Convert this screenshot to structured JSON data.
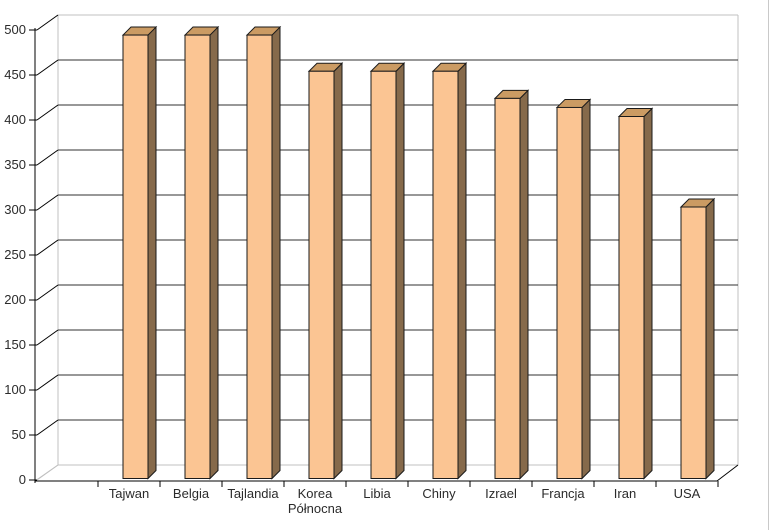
{
  "window": {
    "background_color": "#FFFFFF",
    "right_edge_border_color": "#C9C9C9"
  },
  "chart_data": {
    "type": "bar",
    "style": "3d-column",
    "title": "",
    "xlabel": "",
    "ylabel": "",
    "categories": [
      "Tajwan",
      "Belgia",
      "Tajlandia",
      "Korea Północna",
      "Libia",
      "Chiny",
      "Izrael",
      "Francja",
      "Iran",
      "USA"
    ],
    "values": [
      490,
      490,
      490,
      450,
      450,
      450,
      420,
      410,
      400,
      300
    ],
    "category_wrap": {
      "Korea Północna": [
        "Korea",
        "Północna"
      ]
    },
    "ylim": [
      0,
      500
    ],
    "ytick_step": 50,
    "ytick_labels": [
      "0",
      "50",
      "100",
      "150",
      "200",
      "250",
      "300",
      "350",
      "400",
      "450",
      "500"
    ],
    "grid": true,
    "legend": false,
    "layout_hints": {
      "projection": "oblique-3d",
      "gridlines": "horizontal-on-back-wall",
      "bars_sit_on_front_floor": true
    },
    "colors": {
      "bar_front": "#FBC593",
      "bar_top": "#CB9B63",
      "bar_side": "#866A4B",
      "bar_outline": "#1A1A1A",
      "gridline": "#303030",
      "wall_edge": "#C0C0C0",
      "axis": "#000000",
      "text": "#2B2B2B",
      "background": "#FFFFFF"
    }
  }
}
